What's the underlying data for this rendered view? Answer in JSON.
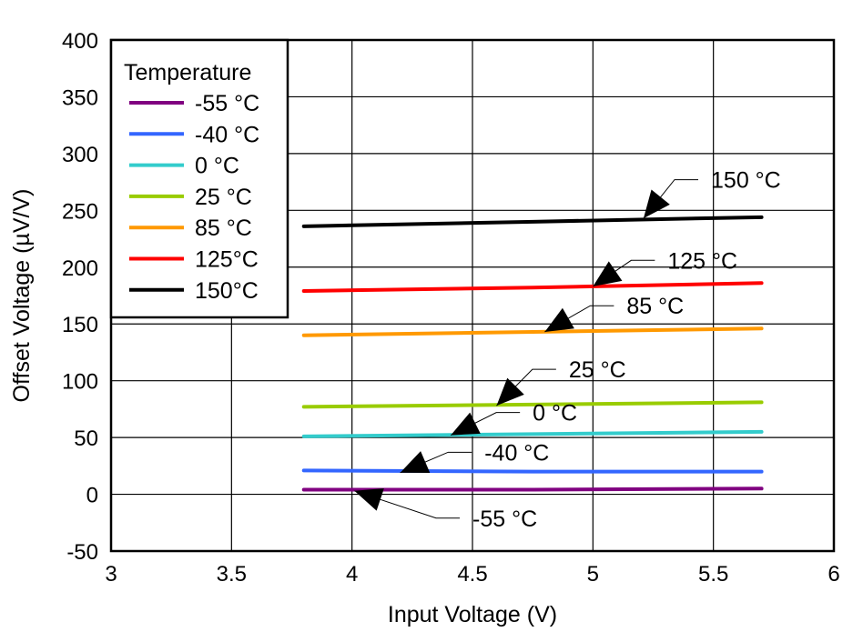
{
  "chart_data": {
    "type": "line",
    "title": "",
    "xlabel": "Input Voltage (V)",
    "ylabel": "Offset Voltage (µV/V)",
    "xlim": [
      3,
      6
    ],
    "ylim": [
      -50,
      400
    ],
    "xticks": [
      3,
      3.5,
      4,
      4.5,
      5,
      5.5,
      6
    ],
    "yticks": [
      -50,
      0,
      50,
      100,
      150,
      200,
      250,
      300,
      350,
      400
    ],
    "xtick_labels": [
      "3",
      "3.5",
      "4",
      "4.5",
      "5",
      "5.5",
      "6"
    ],
    "ytick_labels": [
      "-50",
      "0",
      "50",
      "100",
      "150",
      "200",
      "250",
      "300",
      "350",
      "400"
    ],
    "grid": true,
    "legend": {
      "title": "Temperature",
      "placement": "top-left"
    },
    "series": [
      {
        "name": "-55 °C",
        "color": "#800080",
        "x": [
          3.8,
          4.75,
          5.7
        ],
        "y": [
          4,
          4,
          5
        ]
      },
      {
        "name": "-40 °C",
        "color": "#3366ff",
        "x": [
          3.8,
          4.75,
          5.7
        ],
        "y": [
          21,
          20,
          20
        ]
      },
      {
        "name": "0 °C",
        "color": "#33cccc",
        "x": [
          3.8,
          4.75,
          5.7
        ],
        "y": [
          51,
          53,
          55
        ]
      },
      {
        "name": "25 °C",
        "color": "#99cc00",
        "x": [
          3.8,
          4.75,
          5.7
        ],
        "y": [
          77,
          79,
          81
        ]
      },
      {
        "name": "85 °C",
        "color": "#ff9900",
        "x": [
          3.8,
          4.75,
          5.7
        ],
        "y": [
          140,
          143,
          146
        ]
      },
      {
        "name": "125°C",
        "color": "#ff0000",
        "x": [
          3.8,
          4.75,
          5.7
        ],
        "y": [
          179,
          182,
          186
        ]
      },
      {
        "name": "150°C",
        "color": "#000000",
        "x": [
          3.8,
          4.75,
          5.7
        ],
        "y": [
          236,
          240,
          244
        ]
      }
    ],
    "annotations": [
      {
        "text": "150 °C",
        "target": [
          5.21,
          243
        ],
        "label": [
          5.49,
          277
        ]
      },
      {
        "text": "125 °C",
        "target": [
          5.0,
          183
        ],
        "label": [
          5.31,
          206
        ]
      },
      {
        "text": "85 °C",
        "target": [
          4.8,
          143
        ],
        "label": [
          5.14,
          166
        ]
      },
      {
        "text": "25 °C",
        "target": [
          4.6,
          78
        ],
        "label": [
          4.9,
          110
        ]
      },
      {
        "text": "0 °C",
        "target": [
          4.41,
          52
        ],
        "label": [
          4.75,
          72
        ]
      },
      {
        "text": "-40 °C",
        "target": [
          4.2,
          19
        ],
        "label": [
          4.55,
          37
        ]
      },
      {
        "text": "-55 °C",
        "target": [
          4.01,
          3
        ],
        "label": [
          4.5,
          -21
        ]
      }
    ]
  }
}
